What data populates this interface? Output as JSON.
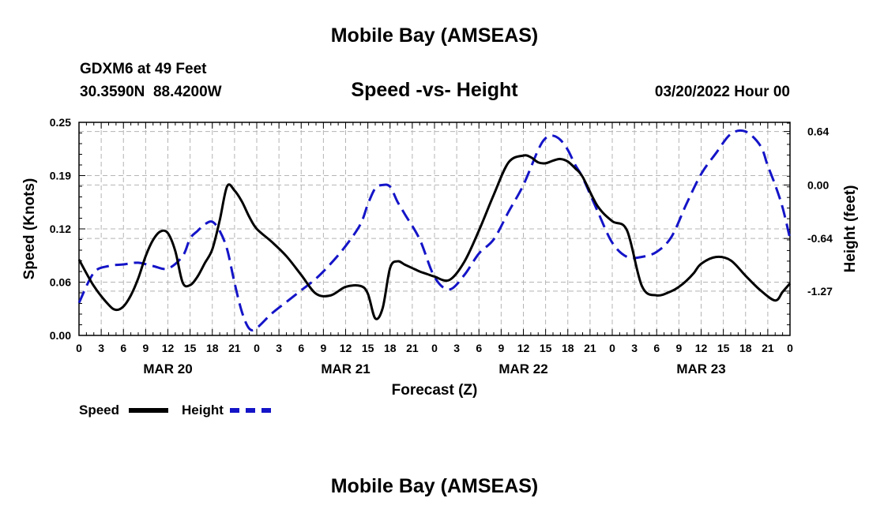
{
  "header": {
    "title": "Mobile Bay (AMSEAS)",
    "station": "GDXM6 at 49 Feet",
    "coords": "30.3590N  88.4200W",
    "datetime": "03/20/2022 Hour 00"
  },
  "footer": {
    "title": "Mobile Bay (AMSEAS)"
  },
  "colors": {
    "speed": "#000000",
    "height": "#1414c8",
    "grid": "#b4b4b4"
  },
  "legend": [
    {
      "label": "Speed",
      "style": "solid",
      "color": "#000000"
    },
    {
      "label": "Height",
      "style": "dashed",
      "color": "#1414c8"
    }
  ],
  "chart_data": {
    "type": "line",
    "title": "Speed -vs- Height",
    "xlabel": "Forecast (Z)",
    "ylabel_left": "Speed (Knots)",
    "ylabel_right": "Height (feet)",
    "x_unit": "hours from 03/20/2022 00Z",
    "xlim": [
      0,
      96
    ],
    "ylim_left": [
      0.0,
      0.25
    ],
    "ylim_right": [
      -1.8,
      0.75
    ],
    "y_ticks_left": [
      "0.00",
      "0.06",
      "0.12",
      "0.19",
      "0.25"
    ],
    "y_ticks_left_values": [
      0.0,
      0.0625,
      0.125,
      0.1875,
      0.25
    ],
    "y_ticks_right": [
      "0.64",
      "0.00",
      "-0.64",
      "-1.27"
    ],
    "y_ticks_right_values": [
      0.64,
      0.0,
      -0.64,
      -1.27
    ],
    "x_tick_labels": [
      "0",
      "3",
      "6",
      "9",
      "12",
      "15",
      "18",
      "21",
      "0",
      "3",
      "6",
      "9",
      "12",
      "15",
      "18",
      "21",
      "0",
      "3",
      "6",
      "9",
      "12",
      "15",
      "18",
      "21",
      "0",
      "3",
      "6",
      "9",
      "12",
      "15",
      "18",
      "21",
      "0"
    ],
    "day_labels": [
      {
        "label": "MAR 20",
        "hour": 12
      },
      {
        "label": "MAR 21",
        "hour": 36
      },
      {
        "label": "MAR 22",
        "hour": 60
      },
      {
        "label": "MAR 23",
        "hour": 84
      }
    ],
    "grid": true,
    "series": [
      {
        "name": "Speed",
        "axis": "left",
        "x": [
          0,
          2,
          4,
          5,
          6,
          7,
          8,
          9,
          10,
          11,
          12,
          13,
          14,
          15,
          16,
          17,
          18,
          19,
          20,
          21,
          22,
          23,
          24,
          26,
          28,
          30,
          32,
          34,
          36,
          38,
          39,
          40,
          41,
          42,
          43,
          44,
          45,
          46,
          47,
          48,
          50,
          52,
          54,
          56,
          58,
          60,
          61,
          62,
          63,
          64,
          65,
          66,
          67,
          68,
          70,
          72,
          74,
          76,
          78,
          80,
          81,
          82,
          83,
          84,
          86,
          88,
          90,
          92,
          94,
          95,
          96
        ],
        "values": [
          0.089,
          0.058,
          0.036,
          0.03,
          0.034,
          0.047,
          0.067,
          0.093,
          0.112,
          0.122,
          0.12,
          0.099,
          0.062,
          0.059,
          0.069,
          0.085,
          0.101,
          0.135,
          0.175,
          0.17,
          0.157,
          0.139,
          0.125,
          0.11,
          0.093,
          0.071,
          0.049,
          0.047,
          0.057,
          0.058,
          0.049,
          0.02,
          0.032,
          0.079,
          0.087,
          0.083,
          0.079,
          0.075,
          0.072,
          0.069,
          0.065,
          0.086,
          0.123,
          0.165,
          0.203,
          0.211,
          0.209,
          0.203,
          0.202,
          0.205,
          0.207,
          0.204,
          0.196,
          0.186,
          0.152,
          0.134,
          0.123,
          0.058,
          0.047,
          0.052,
          0.057,
          0.064,
          0.073,
          0.084,
          0.092,
          0.088,
          0.07,
          0.053,
          0.041,
          0.051,
          0.061
        ]
      },
      {
        "name": "Height",
        "axis": "right",
        "x": [
          0,
          2,
          4,
          6,
          8,
          10,
          12,
          14,
          15,
          16,
          17,
          18,
          19,
          20,
          21,
          22,
          23,
          24,
          26,
          28,
          30,
          32,
          34,
          36,
          38,
          39,
          40,
          41,
          42,
          43,
          44,
          46,
          48,
          50,
          52,
          54,
          56,
          58,
          60,
          62,
          63,
          64,
          65,
          66,
          67,
          68,
          70,
          72,
          74,
          76,
          78,
          80,
          82,
          84,
          86,
          88,
          90,
          92,
          93,
          94,
          95,
          96
        ],
        "values": [
          -1.41,
          -1.05,
          -0.97,
          -0.95,
          -0.93,
          -0.97,
          -1.0,
          -0.85,
          -0.64,
          -0.55,
          -0.47,
          -0.44,
          -0.55,
          -0.77,
          -1.17,
          -1.52,
          -1.72,
          -1.71,
          -1.54,
          -1.4,
          -1.26,
          -1.12,
          -0.94,
          -0.73,
          -0.47,
          -0.23,
          -0.04,
          0.0,
          -0.02,
          -0.2,
          -0.35,
          -0.65,
          -1.1,
          -1.25,
          -1.08,
          -0.82,
          -0.65,
          -0.32,
          -0.0,
          0.42,
          0.56,
          0.59,
          0.54,
          0.42,
          0.24,
          0.09,
          -0.31,
          -0.69,
          -0.86,
          -0.86,
          -0.8,
          -0.62,
          -0.23,
          0.13,
          0.38,
          0.61,
          0.64,
          0.47,
          0.23,
          0.0,
          -0.27,
          -0.64
        ]
      }
    ]
  }
}
